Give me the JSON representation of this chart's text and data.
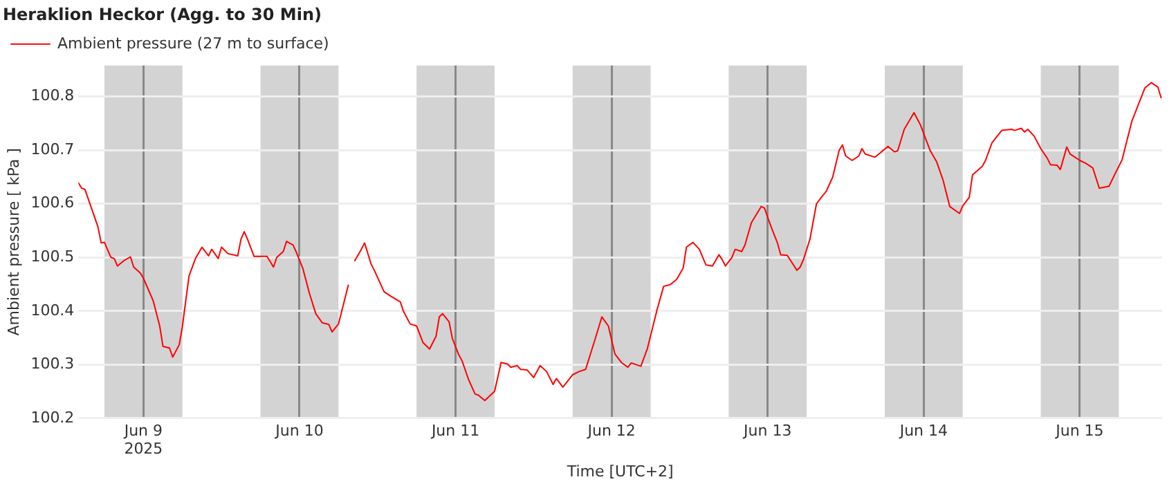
{
  "chart_data": {
    "type": "line",
    "title": "Heraklion Heckor (Agg. to 30 Min)",
    "xlabel": "Time [UTC+2]",
    "ylabel": "Ambient pressure [ kPa ]",
    "xlim": [
      "2025-06-08T14:00",
      "2025-06-15T12:40"
    ],
    "xticks": [
      {
        "value": "2025-06-09T00:00",
        "label": "Jun 9\n2025"
      },
      {
        "value": "2025-06-10T00:00",
        "label": "Jun 10"
      },
      {
        "value": "2025-06-11T00:00",
        "label": "Jun 11"
      },
      {
        "value": "2025-06-12T00:00",
        "label": "Jun 12"
      },
      {
        "value": "2025-06-13T00:00",
        "label": "Jun 13"
      },
      {
        "value": "2025-06-14T00:00",
        "label": "Jun 14"
      },
      {
        "value": "2025-06-15T00:00",
        "label": "Jun 15"
      }
    ],
    "ylim": [
      100.2,
      100.858
    ],
    "yticks": [
      100.2,
      100.3,
      100.4,
      100.5,
      100.6,
      100.7,
      100.8
    ],
    "grid": true,
    "legend": "top left",
    "marker": "none",
    "line_style": "solid",
    "bands": [
      {
        "axis": "x",
        "from": "2025-06-08T18:00",
        "to": "2025-06-09T06:00",
        "color": "#d3d3d3"
      },
      {
        "axis": "x",
        "from": "2025-06-09T18:00",
        "to": "2025-06-10T06:00",
        "color": "#d3d3d3"
      },
      {
        "axis": "x",
        "from": "2025-06-10T18:00",
        "to": "2025-06-11T06:00",
        "color": "#d3d3d3"
      },
      {
        "axis": "x",
        "from": "2025-06-11T18:00",
        "to": "2025-06-12T06:00",
        "color": "#d3d3d3"
      },
      {
        "axis": "x",
        "from": "2025-06-12T18:00",
        "to": "2025-06-13T06:00",
        "color": "#d3d3d3"
      },
      {
        "axis": "x",
        "from": "2025-06-13T18:00",
        "to": "2025-06-14T06:00",
        "color": "#d3d3d3"
      },
      {
        "axis": "x",
        "from": "2025-06-14T18:00",
        "to": "2025-06-15T06:00",
        "color": "#d3d3d3"
      }
    ],
    "series": [
      {
        "name": "Ambient pressure (27 m to surface)",
        "color": "#ff0000",
        "x": [
          "2025-06-08T14:00",
          "2025-06-08T14:30",
          "2025-06-08T15:00",
          "2025-06-08T17:00",
          "2025-06-08T17:30",
          "2025-06-08T18:00",
          "2025-06-08T19:00",
          "2025-06-08T19:30",
          "2025-06-08T20:00",
          "2025-06-08T21:00",
          "2025-06-08T22:00",
          "2025-06-08T22:30",
          "2025-06-08T23:30",
          "2025-06-09T00:00",
          "2025-06-09T01:30",
          "2025-06-09T02:30",
          "2025-06-09T03:00",
          "2025-06-09T04:00",
          "2025-06-09T04:30",
          "2025-06-09T05:30",
          "2025-06-09T06:00",
          "2025-06-09T07:00",
          "2025-06-09T08:00",
          "2025-06-09T09:00",
          "2025-06-09T10:00",
          "2025-06-09T10:30",
          "2025-06-09T11:30",
          "2025-06-09T12:00",
          "2025-06-09T13:00",
          "2025-06-09T14:30",
          "2025-06-09T15:00",
          "2025-06-09T15:30",
          "2025-06-09T16:00",
          "2025-06-09T17:00",
          "2025-06-09T19:00",
          "2025-06-09T20:00",
          "2025-06-09T20:30",
          "2025-06-09T21:30",
          "2025-06-09T22:00",
          "2025-06-09T23:00",
          "2025-06-09T23:30",
          "2025-06-10T00:30",
          "2025-06-10T01:30",
          "2025-06-10T02:30",
          "2025-06-10T03:30",
          "2025-06-10T04:30",
          "2025-06-10T05:00",
          "2025-06-10T06:00",
          "2025-06-10T07:30",
          "2025-06-10T08:00",
          "2025-06-10T08:30",
          "2025-06-10T09:30",
          "2025-06-10T10:00",
          "2025-06-10T11:00",
          "2025-06-10T11:30",
          "2025-06-10T13:00",
          "2025-06-10T14:00",
          "2025-06-10T15:30",
          "2025-06-10T16:00",
          "2025-06-10T17:00",
          "2025-06-10T18:00",
          "2025-06-10T19:00",
          "2025-06-10T20:00",
          "2025-06-10T21:00",
          "2025-06-10T21:30",
          "2025-06-10T22:00",
          "2025-06-10T23:00",
          "2025-06-10T23:30",
          "2025-06-11T00:30",
          "2025-06-11T01:00",
          "2025-06-11T02:00",
          "2025-06-11T03:00",
          "2025-06-11T03:30",
          "2025-06-11T04:30",
          "2025-06-11T06:00",
          "2025-06-11T07:00",
          "2025-06-11T08:00",
          "2025-06-11T08:30",
          "2025-06-11T09:30",
          "2025-06-11T10:00",
          "2025-06-11T11:00",
          "2025-06-11T12:00",
          "2025-06-11T13:00",
          "2025-06-11T14:00",
          "2025-06-11T15:00",
          "2025-06-11T15:30",
          "2025-06-11T16:30",
          "2025-06-11T18:00",
          "2025-06-11T19:00",
          "2025-06-11T20:00",
          "2025-06-11T21:30",
          "2025-06-11T22:30",
          "2025-06-11T23:30",
          "2025-06-12T00:30",
          "2025-06-12T01:30",
          "2025-06-12T02:30",
          "2025-06-12T03:00",
          "2025-06-12T04:30",
          "2025-06-12T05:30",
          "2025-06-12T07:00",
          "2025-06-12T08:00",
          "2025-06-12T09:00",
          "2025-06-12T10:00",
          "2025-06-12T11:00",
          "2025-06-12T11:30",
          "2025-06-12T12:30",
          "2025-06-12T13:30",
          "2025-06-12T14:30",
          "2025-06-12T15:30",
          "2025-06-12T16:30",
          "2025-06-12T17:00",
          "2025-06-12T17:30",
          "2025-06-12T18:30",
          "2025-06-12T19:00",
          "2025-06-12T20:00",
          "2025-06-12T20:30",
          "2025-06-12T21:30",
          "2025-06-12T23:00",
          "2025-06-12T23:30",
          "2025-06-13T00:30",
          "2025-06-13T01:30",
          "2025-06-13T02:00",
          "2025-06-13T03:00",
          "2025-06-13T04:30",
          "2025-06-13T05:00",
          "2025-06-13T05:30",
          "2025-06-13T06:30",
          "2025-06-13T07:30",
          "2025-06-13T08:30",
          "2025-06-13T09:00",
          "2025-06-13T10:00",
          "2025-06-13T11:00",
          "2025-06-13T11:30",
          "2025-06-13T12:00",
          "2025-06-13T13:00",
          "2025-06-13T14:00",
          "2025-06-13T14:30",
          "2025-06-13T15:00",
          "2025-06-13T16:30",
          "2025-06-13T18:30",
          "2025-06-13T19:30",
          "2025-06-13T20:00",
          "2025-06-13T21:00",
          "2025-06-13T22:30",
          "2025-06-13T23:30",
          "2025-06-14T01:00",
          "2025-06-14T02:00",
          "2025-06-14T03:00",
          "2025-06-14T04:00",
          "2025-06-14T05:30",
          "2025-06-14T06:00",
          "2025-06-14T07:00",
          "2025-06-14T07:30",
          "2025-06-14T09:00",
          "2025-06-14T09:30",
          "2025-06-14T10:30",
          "2025-06-14T12:00",
          "2025-06-14T13:30",
          "2025-06-14T14:00",
          "2025-06-14T15:00",
          "2025-06-14T15:30",
          "2025-06-14T16:00",
          "2025-06-14T17:00",
          "2025-06-14T18:00",
          "2025-06-14T19:00",
          "2025-06-14T19:30",
          "2025-06-14T20:30",
          "2025-06-14T21:00",
          "2025-06-14T22:00",
          "2025-06-14T22:30",
          "2025-06-15T00:00",
          "2025-06-15T01:00",
          "2025-06-15T02:00",
          "2025-06-15T03:00",
          "2025-06-15T04:30",
          "2025-06-15T05:30",
          "2025-06-15T06:30",
          "2025-06-15T08:00",
          "2025-06-15T10:00",
          "2025-06-15T11:00",
          "2025-06-15T12:00",
          "2025-06-15T12:30"
        ],
        "values": [
          100.639,
          100.629,
          100.627,
          100.557,
          100.527,
          100.528,
          100.5,
          100.498,
          100.484,
          100.494,
          100.501,
          100.482,
          100.471,
          100.461,
          100.419,
          100.372,
          100.334,
          100.331,
          100.314,
          100.337,
          100.372,
          100.465,
          100.498,
          100.519,
          100.503,
          100.515,
          100.498,
          100.519,
          100.507,
          100.503,
          100.534,
          100.548,
          100.534,
          100.502,
          100.502,
          100.482,
          100.5,
          100.511,
          100.53,
          100.523,
          100.51,
          100.48,
          100.434,
          100.395,
          100.378,
          100.375,
          100.361,
          100.376,
          100.448,
          null,
          100.494,
          100.515,
          100.527,
          100.488,
          100.476,
          100.436,
          100.428,
          100.417,
          100.399,
          100.376,
          100.372,
          100.341,
          100.329,
          100.353,
          100.389,
          100.395,
          100.38,
          100.349,
          100.318,
          100.307,
          100.272,
          100.245,
          100.243,
          100.233,
          100.25,
          100.304,
          100.301,
          100.295,
          100.298,
          100.291,
          100.29,
          100.276,
          100.298,
          100.287,
          100.263,
          100.274,
          100.258,
          100.281,
          100.287,
          100.291,
          100.349,
          100.389,
          100.372,
          100.32,
          100.304,
          100.295,
          100.303,
          100.297,
          100.33,
          100.403,
          100.446,
          100.449,
          100.459,
          100.48,
          100.519,
          100.528,
          100.515,
          100.486,
          100.484,
          100.505,
          100.496,
          100.484,
          100.5,
          100.515,
          100.511,
          100.523,
          100.565,
          100.595,
          100.592,
          100.558,
          100.527,
          100.505,
          100.504,
          100.476,
          100.482,
          100.496,
          100.534,
          100.6,
          100.616,
          100.623,
          100.65,
          100.7,
          100.71,
          100.689,
          100.681,
          100.689,
          100.703,
          100.693,
          100.687,
          100.707,
          100.697,
          100.699,
          100.739,
          100.77,
          100.747,
          100.699,
          100.678,
          100.643,
          100.595,
          100.582,
          100.596,
          100.612,
          100.654,
          100.67,
          100.681,
          100.714,
          100.737,
          100.739,
          100.737,
          100.741,
          100.734,
          100.739,
          100.726,
          100.703,
          100.685,
          100.673,
          100.672,
          100.664,
          100.706,
          100.693,
          100.681,
          100.675,
          100.667,
          100.629,
          100.633,
          100.658,
          100.682,
          100.754,
          100.816,
          100.826,
          100.818,
          100.798
        ]
      }
    ]
  }
}
